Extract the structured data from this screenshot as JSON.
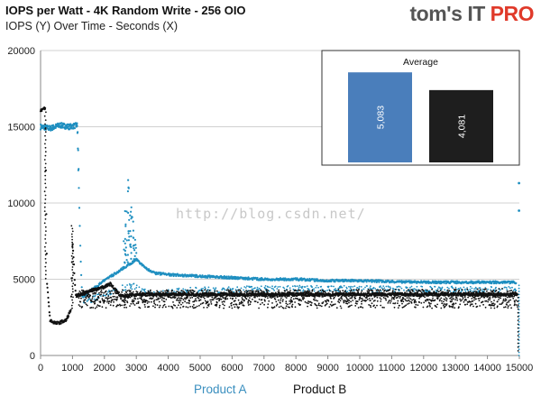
{
  "header": {
    "title": "IOPS per Watt - 4K Random Write - 256 OIO",
    "subtitle": "IOPS (Y) Over Time - Seconds (X)",
    "logo_main": "tom's IT ",
    "logo_accent": "PRO"
  },
  "watermark": "http://blog.csdn.net/",
  "colors": {
    "product_a": "#1f8fc0",
    "product_b": "#111111",
    "inset_a": "#4a7ebb",
    "inset_b": "#1e1e1e"
  },
  "chart_data": [
    {
      "type": "scatter",
      "title": "IOPS per Watt - 4K Random Write - 256 OIO",
      "subtitle": "IOPS (Y) Over Time - Seconds (X)",
      "xlim": [
        0,
        15000
      ],
      "ylim": [
        0,
        20000
      ],
      "x_ticks": [
        0,
        1000,
        2000,
        3000,
        4000,
        5000,
        6000,
        7000,
        8000,
        9000,
        10000,
        11000,
        12000,
        13000,
        14000,
        15000
      ],
      "y_ticks": [
        0,
        5000,
        10000,
        15000,
        20000
      ],
      "grid": "horizontal",
      "legend": "bottom",
      "series": [
        {
          "name": "Product A",
          "color": "#1f8fc0",
          "points": [
            [
              0,
              15000
            ],
            [
              300,
              14900
            ],
            [
              600,
              15100
            ],
            [
              900,
              15000
            ],
            [
              1150,
              15100
            ],
            [
              1250,
              6800
            ],
            [
              1300,
              3800
            ],
            [
              1600,
              4300
            ],
            [
              2000,
              4900
            ],
            [
              2500,
              5600
            ],
            [
              2800,
              6000
            ],
            [
              3000,
              6300
            ],
            [
              3300,
              5700
            ],
            [
              3600,
              5400
            ],
            [
              4000,
              5300
            ],
            [
              5000,
              5200
            ],
            [
              6000,
              5100
            ],
            [
              7000,
              5000
            ],
            [
              8000,
              5000
            ],
            [
              9000,
              4900
            ],
            [
              10000,
              4900
            ],
            [
              11000,
              4850
            ],
            [
              12000,
              4800
            ],
            [
              13000,
              4800
            ],
            [
              14000,
              4800
            ],
            [
              14900,
              4800
            ]
          ],
          "scatter_band": [
            [
              1300,
              3400
            ],
            [
              2000,
              4000
            ],
            [
              2800,
              4600
            ],
            [
              3500,
              4100
            ],
            [
              5000,
              4300
            ],
            [
              8000,
              4400
            ],
            [
              12000,
              4350
            ],
            [
              14900,
              4300
            ]
          ],
          "spike": [
            [
              2600,
              7500
            ],
            [
              2700,
              12300
            ],
            [
              2800,
              10500
            ],
            [
              2900,
              9000
            ],
            [
              3000,
              7600
            ]
          ],
          "end_outliers": [
            [
              14990,
              11300
            ],
            [
              14990,
              9500
            ]
          ]
        },
        {
          "name": "Product B",
          "color": "#111111",
          "points": [
            [
              0,
              16100
            ],
            [
              150,
              16200
            ],
            [
              200,
              4800
            ],
            [
              300,
              2300
            ],
            [
              500,
              2100
            ],
            [
              800,
              2300
            ],
            [
              950,
              3000
            ],
            [
              1000,
              7500
            ],
            [
              1100,
              3900
            ],
            [
              1500,
              4200
            ],
            [
              2000,
              4500
            ],
            [
              2200,
              4700
            ],
            [
              2500,
              3900
            ],
            [
              3000,
              4000
            ],
            [
              4000,
              4000
            ],
            [
              6000,
              4000
            ],
            [
              8000,
              4000
            ],
            [
              10000,
              4000
            ],
            [
              12000,
              4000
            ],
            [
              14000,
              4000
            ],
            [
              14950,
              4000
            ]
          ],
          "scatter_band_low": [
            [
              1200,
              3500
            ],
            [
              3000,
              3500
            ],
            [
              8000,
              3500
            ],
            [
              14950,
              3500
            ]
          ],
          "scatter_band_high": [
            [
              1200,
              4300
            ],
            [
              3000,
              4300
            ],
            [
              8000,
              4300
            ],
            [
              14950,
              4400
            ]
          ]
        }
      ]
    },
    {
      "type": "bar",
      "title": "Average",
      "categories": [
        "Product A",
        "Product B"
      ],
      "values": [
        5083,
        4081
      ],
      "value_labels": [
        "5,083",
        "4,081"
      ],
      "ylim": [
        0,
        5500
      ],
      "legend": "none"
    }
  ],
  "legend": {
    "product_a": "Product  A",
    "product_b": "Product  B"
  }
}
